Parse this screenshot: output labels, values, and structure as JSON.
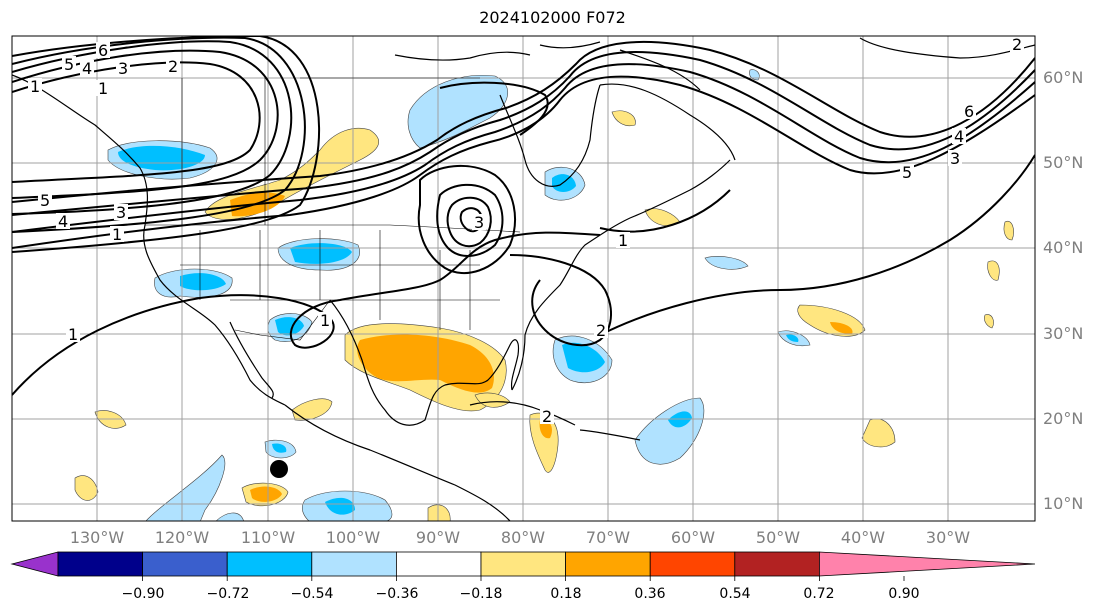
{
  "title": "2024102000 F072",
  "lat_labels": [
    "60°N",
    "50°N",
    "40°N",
    "30°N",
    "20°N",
    "10°N"
  ],
  "lon_labels": [
    "130°W",
    "120°W",
    "110°W",
    "100°W",
    "90°W",
    "80°W",
    "70°W",
    "60°W",
    "50°W",
    "40°W",
    "30°W"
  ],
  "colorbar": {
    "ticks": [
      "−0.90",
      "−0.72",
      "−0.54",
      "−0.36",
      "−0.18",
      "0.18",
      "0.36",
      "0.54",
      "0.72",
      "0.90"
    ],
    "colors": [
      "#9932cc",
      "#00008b",
      "#3a5fcd",
      "#00bfff",
      "#b0e2ff",
      "#ffffff",
      "#ffe680",
      "#ffa500",
      "#ff4500",
      "#b22222",
      "#ff82ab"
    ]
  },
  "contour_labels": [
    "6",
    "5",
    "4",
    "3",
    "2",
    "1",
    "1",
    "5",
    "4",
    "3",
    "1",
    "1",
    "1",
    "1",
    "2",
    "2",
    "6",
    "4",
    "3",
    "5",
    "2",
    "3"
  ],
  "marker": "storm-center-dot"
}
